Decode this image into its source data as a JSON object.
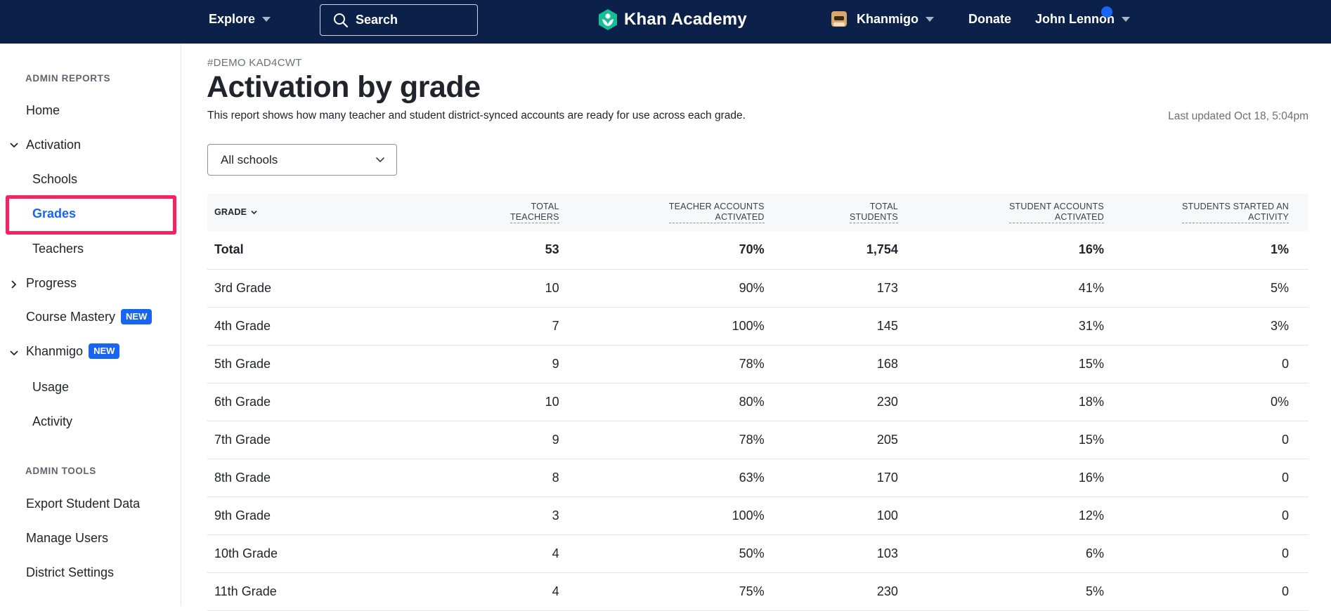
{
  "topnav": {
    "explore_label": "Explore",
    "search_label": "Search",
    "logo_text": "Khan Academy",
    "khanmigo_label": "Khanmigo",
    "donate_label": "Donate",
    "user_name": "John Lennon",
    "brand_color": "#0b2149",
    "logo_color": "#14bf96"
  },
  "sidebar": {
    "section_reports": "ADMIN REPORTS",
    "home": "Home",
    "activation": "Activation",
    "schools": "Schools",
    "grades": "Grades",
    "teachers": "Teachers",
    "progress": "Progress",
    "course_mastery": "Course Mastery",
    "course_mastery_badge": "NEW",
    "khanmigo": "Khanmigo",
    "khanmigo_badge": "NEW",
    "usage": "Usage",
    "activity": "Activity",
    "section_tools": "ADMIN TOOLS",
    "export_student_data": "Export Student Data",
    "manage_users": "Manage Users",
    "district_settings": "District Settings",
    "highlight_color": "#f3245f",
    "selected_color": "#1865f2"
  },
  "main": {
    "org_tag": "#DEMO KAD4CWT",
    "title": "Activation by grade",
    "description": "This report shows how many teacher and student district-synced accounts are ready for use across each grade.",
    "last_updated": "Last updated Oct 18, 5:04pm",
    "school_filter": "All schools"
  },
  "table": {
    "headers": {
      "grade": "GRADE",
      "total_teachers_1": "TOTAL",
      "total_teachers_2": "TEACHERS",
      "teacher_activated_1": "TEACHER ACCOUNTS",
      "teacher_activated_2": "ACTIVATED",
      "total_students_1": "TOTAL",
      "total_students_2": "STUDENTS",
      "student_activated_1": "STUDENT ACCOUNTS",
      "student_activated_2": "ACTIVATED",
      "started_activity_1": "STUDENTS STARTED AN",
      "started_activity_2": "ACTIVITY"
    },
    "rows": [
      {
        "grade": "Total",
        "total_teachers": "53",
        "teacher_activated": "70%",
        "total_students": "1,754",
        "student_activated": "16%",
        "started_activity": "1%"
      },
      {
        "grade": "3rd Grade",
        "total_teachers": "10",
        "teacher_activated": "90%",
        "total_students": "173",
        "student_activated": "41%",
        "started_activity": "5%"
      },
      {
        "grade": "4th Grade",
        "total_teachers": "7",
        "teacher_activated": "100%",
        "total_students": "145",
        "student_activated": "31%",
        "started_activity": "3%"
      },
      {
        "grade": "5th Grade",
        "total_teachers": "9",
        "teacher_activated": "78%",
        "total_students": "168",
        "student_activated": "15%",
        "started_activity": "0"
      },
      {
        "grade": "6th Grade",
        "total_teachers": "10",
        "teacher_activated": "80%",
        "total_students": "230",
        "student_activated": "18%",
        "started_activity": "0%"
      },
      {
        "grade": "7th Grade",
        "total_teachers": "9",
        "teacher_activated": "78%",
        "total_students": "205",
        "student_activated": "15%",
        "started_activity": "0"
      },
      {
        "grade": "8th Grade",
        "total_teachers": "8",
        "teacher_activated": "63%",
        "total_students": "170",
        "student_activated": "16%",
        "started_activity": "0"
      },
      {
        "grade": "9th Grade",
        "total_teachers": "3",
        "teacher_activated": "100%",
        "total_students": "100",
        "student_activated": "12%",
        "started_activity": "0"
      },
      {
        "grade": "10th Grade",
        "total_teachers": "4",
        "teacher_activated": "50%",
        "total_students": "103",
        "student_activated": "6%",
        "started_activity": "0"
      },
      {
        "grade": "11th Grade",
        "total_teachers": "4",
        "teacher_activated": "75%",
        "total_students": "230",
        "student_activated": "5%",
        "started_activity": "0"
      }
    ]
  }
}
